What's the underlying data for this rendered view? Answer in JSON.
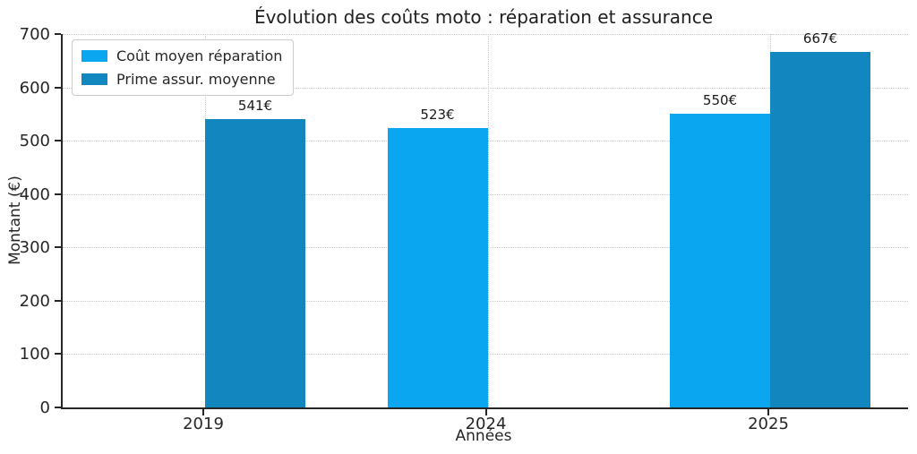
{
  "chart_data": {
    "type": "bar",
    "title": "Évolution des coûts moto : réparation et assurance",
    "xlabel": "Années",
    "ylabel": "Montant (€)",
    "categories": [
      "2019",
      "2024",
      "2025"
    ],
    "series": [
      {
        "name": "Coût moyen réparation",
        "color": "#0AA7F0",
        "values": [
          null,
          523,
          550
        ],
        "labels": [
          null,
          "523€",
          "550€"
        ]
      },
      {
        "name": "Prime assur. moyenne",
        "color": "#1286BE",
        "values": [
          541,
          null,
          667
        ],
        "labels": [
          "541€",
          null,
          "667€"
        ]
      }
    ],
    "ylim": [
      0,
      700
    ],
    "yticks": [
      0,
      100,
      200,
      300,
      400,
      500,
      600,
      700
    ],
    "grid": {
      "visible": true,
      "style": "dotted",
      "color": "#c9c9c9"
    },
    "legend": {
      "position": "upper-left"
    },
    "axis_color": "#262626",
    "background_color": "#ffffff"
  }
}
